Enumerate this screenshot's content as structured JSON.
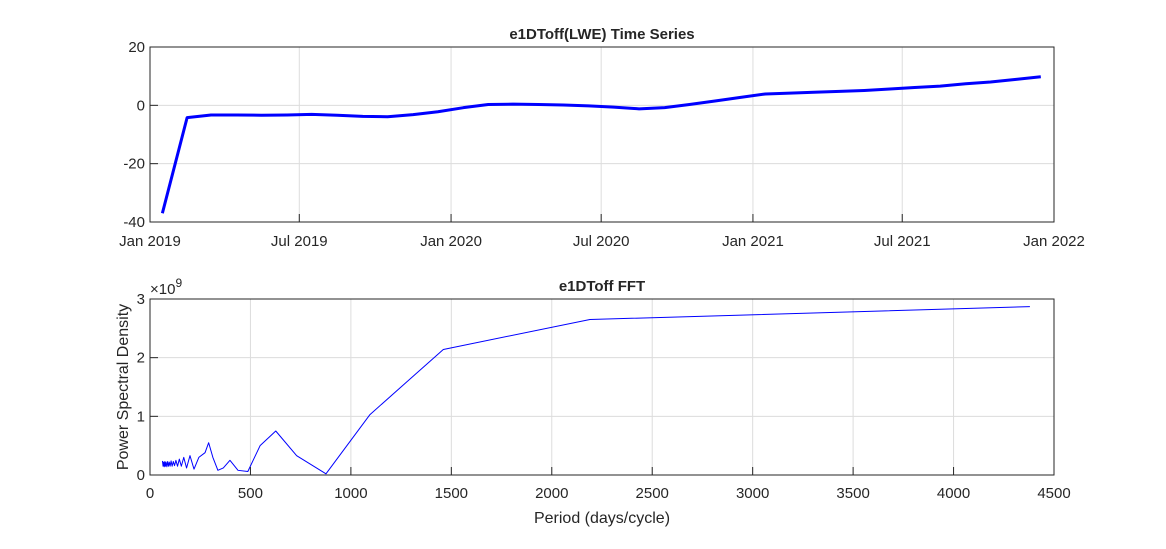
{
  "chart_data": [
    {
      "type": "line",
      "title": "e1DToff(LWE) Time Series",
      "xlabel": "",
      "ylabel": "",
      "x_ticks": [
        "Jan 2019",
        "Jul 2019",
        "Jan 2020",
        "Jul 2020",
        "Jan 2021",
        "Jul 2021",
        "Jan 2022"
      ],
      "x_range": [
        "2019-01-01",
        "2022-01-01"
      ],
      "ylim": [
        -40,
        20
      ],
      "y_ticks": [
        20,
        0,
        -20,
        -40
      ],
      "grid": true,
      "series": [
        {
          "color": "#0000ff",
          "x": [
            "2019-01-16",
            "2019-02-15",
            "2019-03-16",
            "2019-04-16",
            "2019-05-16",
            "2019-06-16",
            "2019-07-16",
            "2019-08-16",
            "2019-09-16",
            "2019-10-16",
            "2019-11-16",
            "2019-12-16",
            "2020-01-16",
            "2020-02-15",
            "2020-03-16",
            "2020-04-16",
            "2020-05-16",
            "2020-06-16",
            "2020-07-16",
            "2020-08-16",
            "2020-09-16",
            "2020-10-16",
            "2020-11-16",
            "2020-12-16",
            "2021-01-16",
            "2021-02-15",
            "2021-03-16",
            "2021-04-16",
            "2021-05-16",
            "2021-06-16",
            "2021-07-16",
            "2021-08-16",
            "2021-09-16",
            "2021-10-16",
            "2021-11-16",
            "2021-12-16"
          ],
          "y": [
            -37,
            -4.2,
            -3.3,
            -3.3,
            -3.4,
            -3.3,
            -3.1,
            -3.4,
            -3.8,
            -3.9,
            -3.2,
            -2.2,
            -0.8,
            0.3,
            0.4,
            0.3,
            0.1,
            -0.2,
            -0.6,
            -1.2,
            -0.8,
            0.3,
            1.5,
            2.7,
            3.9,
            4.2,
            4.5,
            4.8,
            5.1,
            5.6,
            6.1,
            6.6,
            7.4,
            8.0,
            8.9,
            9.8
          ]
        }
      ]
    },
    {
      "type": "line",
      "title": "e1DToff FFT",
      "xlabel": "Period (days/cycle)",
      "ylabel": "Power Spectral Density",
      "y_exponent": "×10",
      "y_exponent_power": "9",
      "xlim": [
        0,
        4500
      ],
      "ylim": [
        0,
        3
      ],
      "x_ticks": [
        "0",
        "500",
        "1000",
        "1500",
        "2000",
        "2500",
        "3000",
        "3500",
        "4000",
        "4500"
      ],
      "y_ticks": [
        "0",
        "1",
        "2",
        "3"
      ],
      "grid": true,
      "series": [
        {
          "color": "#0000ff",
          "x": [
            62,
            65,
            68,
            71,
            74,
            77,
            80,
            84,
            88,
            92,
            96,
            100,
            105,
            110,
            116,
            122,
            129,
            137,
            146,
            156,
            168,
            182,
            199,
            219,
            243,
            274,
            292,
            313,
            338,
            365,
            398,
            438,
            487,
            548,
            626,
            730,
            876,
            1095,
            1460,
            2190,
            4380
          ],
          "y": [
            0.24,
            0.15,
            0.22,
            0.14,
            0.23,
            0.15,
            0.22,
            0.14,
            0.23,
            0.15,
            0.22,
            0.15,
            0.24,
            0.15,
            0.23,
            0.16,
            0.25,
            0.15,
            0.27,
            0.15,
            0.3,
            0.12,
            0.33,
            0.1,
            0.3,
            0.38,
            0.55,
            0.3,
            0.08,
            0.12,
            0.25,
            0.08,
            0.06,
            0.5,
            0.75,
            0.33,
            0.02,
            1.03,
            2.14,
            2.65,
            2.87
          ]
        }
      ]
    }
  ]
}
